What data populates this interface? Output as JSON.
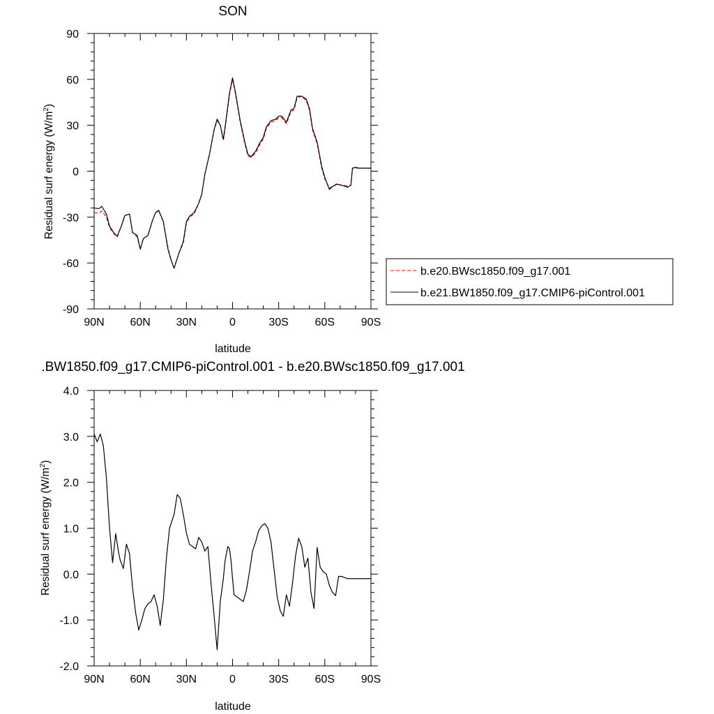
{
  "chart_data": [
    {
      "type": "line",
      "title": "SON",
      "xlabel": "latitude",
      "ylabel": "Residual surf energy (W/m",
      "ylabel_sup": "2",
      "ylabel_close": ")",
      "xlim": [
        90,
        -90
      ],
      "ylim": [
        -90,
        90
      ],
      "x_ticks": [
        90,
        60,
        30,
        0,
        -30,
        -60,
        -90
      ],
      "x_tick_labels": [
        "90N",
        "60N",
        "30N",
        "0",
        "30S",
        "60S",
        "90S"
      ],
      "y_ticks": [
        -90,
        -60,
        -30,
        0,
        30,
        60,
        90
      ],
      "y_tick_labels": [
        "-90",
        "-60",
        "-30",
        "0",
        "30",
        "60",
        "90"
      ],
      "legend_position": "right",
      "colors": {
        "dashed": "#ff0000",
        "solid": "#000000"
      },
      "series": [
        {
          "name": "b.e20.BWsc1850.f09_g17.001",
          "style": "dashed",
          "color": "#ff0000",
          "x": [
            90,
            87,
            85,
            82,
            80,
            77,
            75,
            72,
            70,
            67,
            65,
            62,
            60,
            58,
            55,
            52,
            50,
            48,
            45,
            42,
            40,
            38,
            35,
            32,
            30,
            28,
            25,
            22,
            20,
            18,
            15,
            12,
            10,
            8,
            6,
            5,
            3,
            2,
            0,
            -2,
            -5,
            -8,
            -10,
            -12,
            -15,
            -18,
            -20,
            -22,
            -25,
            -28,
            -30,
            -32,
            -35,
            -38,
            -40,
            -42,
            -45,
            -48,
            -50,
            -52,
            -55,
            -58,
            -60,
            -63,
            -65,
            -68,
            -70,
            -72,
            -75,
            -77,
            -78,
            -80,
            -82,
            -85,
            -88,
            -90
          ],
          "y": [
            -27,
            -27.5,
            -26,
            -30,
            -37,
            -41,
            -43,
            -35,
            -29,
            -28,
            -40,
            -43,
            -51,
            -44,
            -42,
            -32,
            -27,
            -26,
            -33,
            -50,
            -58,
            -63,
            -54,
            -47,
            -34,
            -30,
            -28,
            -21,
            -15,
            -2,
            11,
            27,
            33,
            30,
            20,
            27,
            42,
            50,
            60,
            50,
            32,
            18,
            10,
            9,
            12,
            18,
            21,
            28,
            32,
            33,
            35,
            35,
            31,
            39,
            40,
            48,
            49,
            46,
            40,
            27,
            18,
            2,
            -5,
            -11,
            -10,
            -8,
            -9,
            -9,
            -10,
            -9,
            2,
            2,
            2,
            2,
            2,
            2
          ]
        },
        {
          "name": "b.e21.BW1850.f09_g17.CMIP6-piControl.001",
          "style": "solid",
          "color": "#000000",
          "x": [
            90,
            87,
            85,
            82,
            80,
            77,
            75,
            72,
            70,
            67,
            65,
            62,
            60,
            58,
            55,
            52,
            50,
            48,
            45,
            42,
            40,
            38,
            35,
            32,
            30,
            28,
            25,
            22,
            20,
            18,
            15,
            12,
            10,
            8,
            6,
            5,
            3,
            2,
            0,
            -2,
            -5,
            -8,
            -10,
            -12,
            -15,
            -18,
            -20,
            -22,
            -25,
            -28,
            -30,
            -32,
            -35,
            -38,
            -40,
            -42,
            -45,
            -48,
            -50,
            -52,
            -55,
            -58,
            -60,
            -63,
            -65,
            -68,
            -70,
            -72,
            -75,
            -77,
            -78,
            -80,
            -82,
            -85,
            -88,
            -90
          ],
          "y": [
            -24,
            -24.5,
            -23,
            -28,
            -36,
            -40.5,
            -42.5,
            -35,
            -29,
            -28,
            -40,
            -42,
            -51,
            -44,
            -42,
            -32,
            -27,
            -25.5,
            -33,
            -51,
            -58,
            -63.5,
            -54,
            -46,
            -33,
            -29.5,
            -27,
            -21,
            -15,
            -2,
            11,
            27,
            34,
            30,
            21,
            28,
            43,
            51,
            61,
            51,
            33,
            19,
            11,
            9.5,
            13,
            19,
            22,
            29,
            33,
            34,
            36,
            36,
            32,
            40,
            41,
            49,
            49,
            47,
            41,
            28,
            19,
            3,
            -4,
            -12,
            -10,
            -8.5,
            -9,
            -9.5,
            -10.5,
            -9,
            2,
            2.5,
            2,
            2,
            2,
            2
          ]
        }
      ]
    },
    {
      "type": "line",
      "title": ".BW1850.f09_g17.CMIP6-piControl.001 - b.e20.BWsc1850.f09_g17.001",
      "xlabel": "latitude",
      "ylabel": "Residual surf energy (W/m",
      "ylabel_sup": "2",
      "ylabel_close": ")",
      "xlim": [
        90,
        -90
      ],
      "ylim": [
        -2,
        4
      ],
      "x_ticks": [
        90,
        60,
        30,
        0,
        -30,
        -60,
        -90
      ],
      "x_tick_labels": [
        "90N",
        "60N",
        "30N",
        "0",
        "30S",
        "60S",
        "90S"
      ],
      "y_ticks": [
        -2,
        -1,
        0,
        1,
        2,
        3,
        4
      ],
      "y_tick_labels": [
        "-2.0",
        "-1.0",
        "0.0",
        "1.0",
        "2.0",
        "3.0",
        "4.0"
      ],
      "series": [
        {
          "name": "",
          "style": "solid",
          "color": "#000000",
          "x": [
            90,
            88,
            86,
            84,
            82,
            80,
            78,
            76,
            74,
            73,
            71,
            69,
            67,
            65,
            63,
            61,
            59,
            57,
            55,
            53,
            51,
            49,
            47,
            45,
            43,
            41,
            38,
            36,
            34,
            32,
            30,
            28,
            26,
            24,
            22,
            20,
            18,
            16,
            14,
            12,
            10,
            8,
            6,
            5,
            4,
            3,
            2,
            1,
            0,
            -1,
            -3,
            -5,
            -7,
            -9,
            -11,
            -13,
            -15,
            -17,
            -19,
            -21,
            -23,
            -25,
            -27,
            -29,
            -31,
            -33,
            -35,
            -37,
            -39,
            -41,
            -43,
            -45,
            -47,
            -49,
            -51,
            -53,
            -55,
            -57,
            -59,
            -61,
            -63,
            -65,
            -67,
            -69,
            -71,
            -73,
            -75,
            -77,
            -80,
            -83,
            -86,
            -90
          ],
          "y": [
            3.05,
            2.88,
            3.05,
            2.8,
            2.1,
            1.0,
            0.25,
            0.88,
            0.45,
            0.3,
            0.12,
            0.65,
            0.45,
            -0.3,
            -0.85,
            -1.22,
            -1.0,
            -0.75,
            -0.65,
            -0.6,
            -0.45,
            -0.7,
            -1.12,
            -0.55,
            0.35,
            1.0,
            1.3,
            1.73,
            1.65,
            1.3,
            0.9,
            0.65,
            0.6,
            0.55,
            0.8,
            0.7,
            0.5,
            0.6,
            -0.2,
            -0.9,
            -1.65,
            -0.6,
            -0.1,
            0.25,
            0.45,
            0.6,
            0.55,
            0.3,
            -0.1,
            -0.45,
            -0.5,
            -0.55,
            -0.6,
            -0.35,
            0.05,
            0.5,
            0.7,
            0.95,
            1.05,
            1.1,
            1.0,
            0.7,
            0.1,
            -0.5,
            -0.8,
            -0.92,
            -0.45,
            -0.7,
            -0.2,
            0.4,
            0.78,
            0.6,
            0.15,
            0.35,
            -0.4,
            -0.75,
            0.58,
            0.15,
            0.05,
            0.0,
            -0.25,
            -0.4,
            -0.47,
            -0.05,
            -0.05,
            -0.08,
            -0.1,
            -0.1,
            -0.1,
            -0.1,
            -0.1,
            -0.1
          ]
        }
      ]
    }
  ]
}
